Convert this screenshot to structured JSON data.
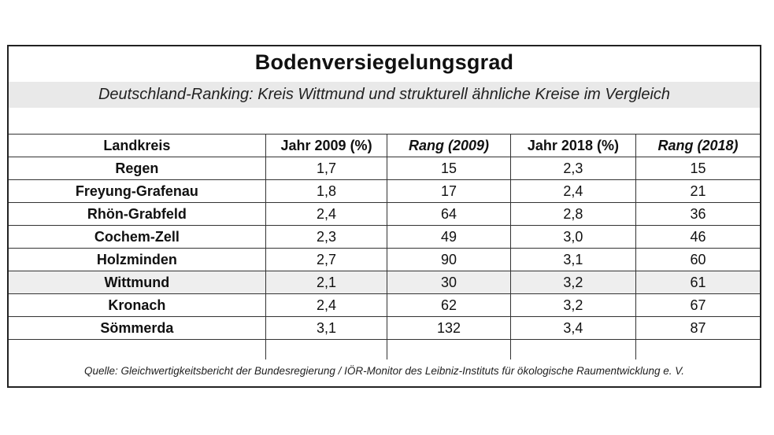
{
  "chart_data": {
    "type": "table",
    "title": "Bodenversiegelungsgrad",
    "subtitle": "Deutschland-Ranking: Kreis Wittmund und strukturell ähnliche Kreise im Vergleich",
    "columns": [
      "Landkreis",
      "Jahr 2009 (%)",
      "Rang (2009)",
      "Jahr 2018 (%)",
      "Rang (2018)"
    ],
    "rows": [
      [
        "Regen",
        "1,7",
        "15",
        "2,3",
        "15"
      ],
      [
        "Freyung-Grafenau",
        "1,8",
        "17",
        "2,4",
        "21"
      ],
      [
        "Rhön-Grabfeld",
        "2,4",
        "64",
        "2,8",
        "36"
      ],
      [
        "Cochem-Zell",
        "2,3",
        "49",
        "3,0",
        "46"
      ],
      [
        "Holzminden",
        "2,7",
        "90",
        "3,1",
        "60"
      ],
      [
        "Wittmund",
        "2,1",
        "30",
        "3,2",
        "61"
      ],
      [
        "Kronach",
        "2,4",
        "62",
        "3,2",
        "67"
      ],
      [
        "Sömmerda",
        "3,1",
        "132",
        "3,4",
        "87"
      ]
    ],
    "highlight_row": "Wittmund",
    "highlight_color": "#eeeeee",
    "source": "Quelle: Gleichwertigkeitsbericht der Bundesregierung / IÖR-Monitor des Leibniz-Instituts für ökologische Raumentwicklung e. V."
  }
}
